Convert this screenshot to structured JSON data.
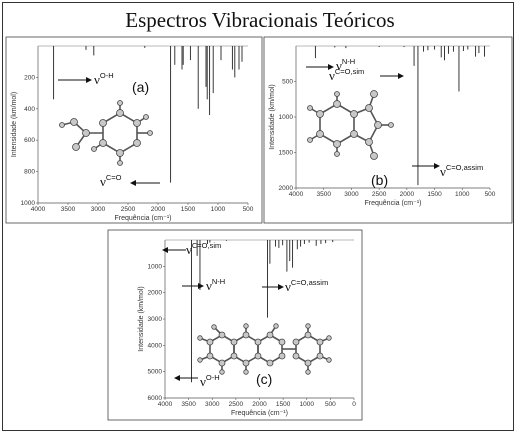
{
  "figure": {
    "title": "Espectros Vibracionais Teóricos"
  },
  "colors": {
    "line": "#222222",
    "frame": "#333333",
    "atom": "#bbbbbb"
  },
  "chart_data": [
    {
      "type": "line",
      "panel": "(a)",
      "xlabel": "Frequência (cm⁻¹)",
      "ylabel": "Intensidade (km/mol)",
      "xlim": [
        4000,
        500
      ],
      "ylim": [
        0,
        1000
      ],
      "y_inverted": true,
      "xticks": [
        4000,
        3500,
        3000,
        2500,
        2000,
        1500,
        1000,
        500
      ],
      "yticks": [
        200,
        400,
        600,
        800,
        1000
      ],
      "peaks": [
        {
          "x": 3740,
          "y": 340
        },
        {
          "x": 3200,
          "y": 25
        },
        {
          "x": 3070,
          "y": 60
        },
        {
          "x": 2220,
          "y": 12
        },
        {
          "x": 1790,
          "y": 870
        },
        {
          "x": 1720,
          "y": 120
        },
        {
          "x": 1600,
          "y": 150
        },
        {
          "x": 1580,
          "y": 120
        },
        {
          "x": 1460,
          "y": 90
        },
        {
          "x": 1330,
          "y": 400
        },
        {
          "x": 1200,
          "y": 260
        },
        {
          "x": 1180,
          "y": 340
        },
        {
          "x": 1140,
          "y": 440
        },
        {
          "x": 1080,
          "y": 300
        },
        {
          "x": 950,
          "y": 90
        },
        {
          "x": 760,
          "y": 150
        },
        {
          "x": 720,
          "y": 200
        },
        {
          "x": 650,
          "y": 150
        },
        {
          "x": 600,
          "y": 100
        }
      ],
      "annotations": [
        {
          "base": "ν",
          "sup": "O-H",
          "direction": "right"
        },
        {
          "base": "ν",
          "sup": "C=O",
          "direction": "left"
        }
      ]
    },
    {
      "type": "line",
      "panel": "(b)",
      "xlabel": "Frequência (cm⁻¹)",
      "ylabel": "Intensidade (km/mol)",
      "xlim": [
        4000,
        500
      ],
      "ylim": [
        0,
        2000
      ],
      "y_inverted": true,
      "xticks": [
        4000,
        3500,
        3000,
        2500,
        2000,
        1500,
        1000,
        500
      ],
      "yticks": [
        500,
        1000,
        1500,
        2000
      ],
      "peaks": [
        {
          "x": 3650,
          "y": 170
        },
        {
          "x": 3300,
          "y": 20
        },
        {
          "x": 3100,
          "y": 30
        },
        {
          "x": 2500,
          "y": 15
        },
        {
          "x": 2050,
          "y": 15
        },
        {
          "x": 1870,
          "y": 280
        },
        {
          "x": 1800,
          "y": 1960
        },
        {
          "x": 1700,
          "y": 80
        },
        {
          "x": 1620,
          "y": 60
        },
        {
          "x": 1500,
          "y": 50
        },
        {
          "x": 1380,
          "y": 160
        },
        {
          "x": 1320,
          "y": 200
        },
        {
          "x": 1250,
          "y": 110
        },
        {
          "x": 1160,
          "y": 80
        },
        {
          "x": 1060,
          "y": 640
        },
        {
          "x": 980,
          "y": 70
        },
        {
          "x": 900,
          "y": 50
        },
        {
          "x": 760,
          "y": 150
        },
        {
          "x": 700,
          "y": 100
        },
        {
          "x": 600,
          "y": 150
        }
      ],
      "annotations": [
        {
          "base": "ν",
          "sup": "N-H",
          "direction": "right"
        },
        {
          "base": "ν",
          "sup": "C=O,sim",
          "direction": "right"
        },
        {
          "base": "ν",
          "sup": "C=O,assim",
          "direction": "right"
        }
      ]
    },
    {
      "type": "line",
      "panel": "(c)",
      "xlabel": "Frequência (cm⁻¹)",
      "ylabel": "Intensidade (km/mol)",
      "xlim": [
        4000,
        0
      ],
      "ylim": [
        0,
        6000
      ],
      "y_inverted": true,
      "xticks": [
        4000,
        3500,
        3000,
        2500,
        2000,
        1500,
        1000,
        500,
        0
      ],
      "yticks": [
        1000,
        2000,
        3000,
        4000,
        5000,
        6000
      ],
      "peaks": [
        {
          "x": 3440,
          "y": 5400
        },
        {
          "x": 3320,
          "y": 600
        },
        {
          "x": 3260,
          "y": 1900
        },
        {
          "x": 3100,
          "y": 150
        },
        {
          "x": 3050,
          "y": 100
        },
        {
          "x": 2700,
          "y": 30
        },
        {
          "x": 1830,
          "y": 2950
        },
        {
          "x": 1780,
          "y": 900
        },
        {
          "x": 1660,
          "y": 250
        },
        {
          "x": 1590,
          "y": 300
        },
        {
          "x": 1510,
          "y": 200
        },
        {
          "x": 1420,
          "y": 1200
        },
        {
          "x": 1360,
          "y": 800
        },
        {
          "x": 1300,
          "y": 1050
        },
        {
          "x": 1200,
          "y": 350
        },
        {
          "x": 1130,
          "y": 250
        },
        {
          "x": 1050,
          "y": 150
        },
        {
          "x": 950,
          "y": 100
        },
        {
          "x": 800,
          "y": 220
        },
        {
          "x": 700,
          "y": 150
        },
        {
          "x": 600,
          "y": 120
        },
        {
          "x": 450,
          "y": 80
        }
      ],
      "annotations": [
        {
          "base": "ν",
          "sup": "C=O,sim",
          "direction": "left"
        },
        {
          "base": "ν",
          "sup": "N-H",
          "direction": "right"
        },
        {
          "base": "ν",
          "sup": "C=O,assim",
          "direction": "right"
        },
        {
          "base": "ν",
          "sup": "O-H",
          "direction": "left"
        }
      ]
    }
  ]
}
